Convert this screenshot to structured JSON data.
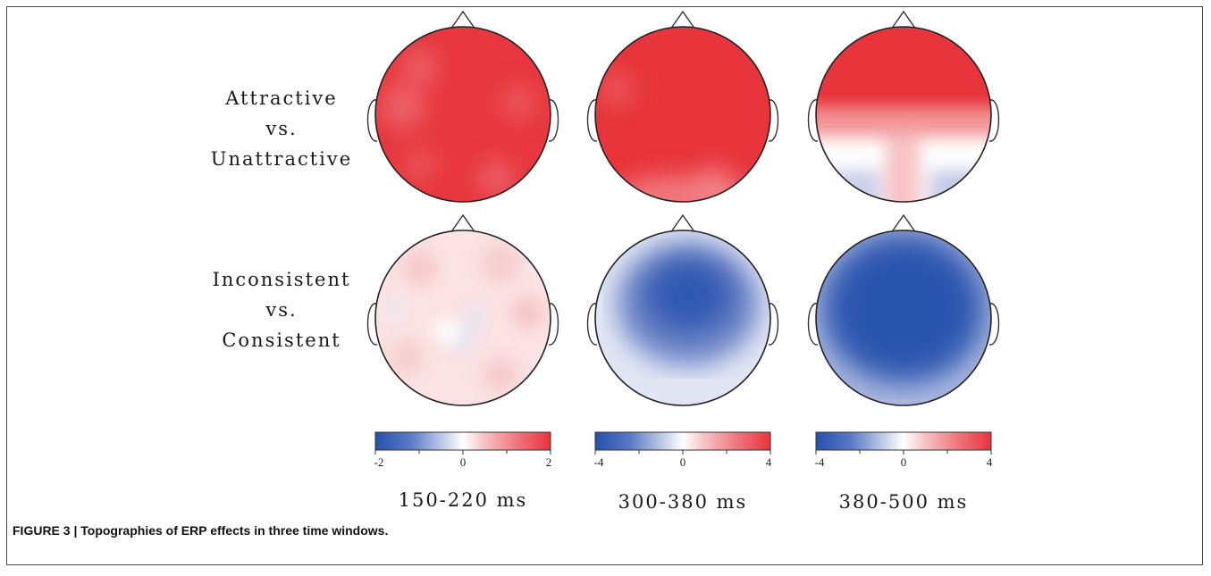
{
  "figure": {
    "row_labels": [
      [
        "Attractive",
        "vs.",
        "Unattractive"
      ],
      [
        "Inconsistent",
        "vs.",
        "Consistent"
      ]
    ],
    "time_windows": [
      "150-220 ms",
      "300-380 ms",
      "380-500 ms"
    ],
    "colorbars": [
      {
        "min": "-2",
        "mid": "0",
        "max": "2"
      },
      {
        "min": "-4",
        "mid": "0",
        "max": "4"
      },
      {
        "min": "-4",
        "mid": "0",
        "max": "4"
      }
    ],
    "colors": {
      "positive": "#e8333b",
      "negative": "#2b57b0",
      "neutral": "#ffffff"
    },
    "caption": "FIGURE 3 | Topographies of ERP effects in three time windows."
  }
}
